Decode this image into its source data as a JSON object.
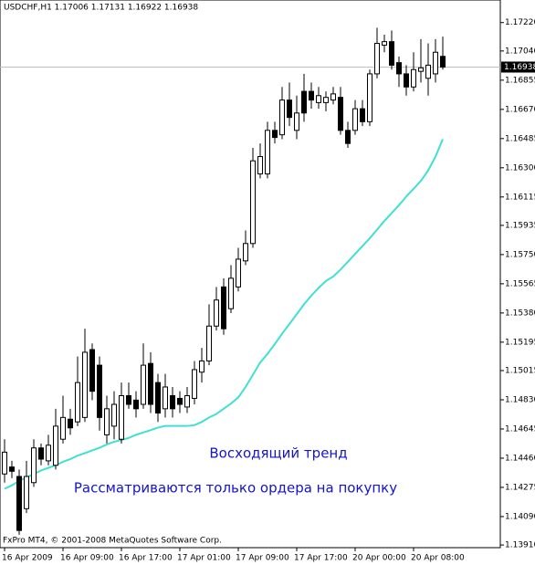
{
  "chart_data": {
    "type": "candlestick",
    "title": "USDCHF,H1  1.17006 1.17131 1.16922 1.16938",
    "footer": "FxPro MT4, © 2001-2008 MetaQuotes Software Corp.",
    "annotations": [
      "Восходящий тренд",
      "Рассматриваются только ордера на покупку"
    ],
    "categories": [
      "16 Apr 2009",
      null,
      null,
      null,
      null,
      null,
      null,
      null,
      "16 Apr 09:00",
      null,
      null,
      null,
      null,
      null,
      null,
      null,
      "16 Apr 17:00",
      null,
      null,
      null,
      null,
      null,
      null,
      null,
      "17 Apr 01:00",
      null,
      null,
      null,
      null,
      null,
      null,
      null,
      "17 Apr 09:00",
      null,
      null,
      null,
      null,
      null,
      null,
      null,
      "17 Apr 17:00",
      null,
      null,
      null,
      null,
      null,
      null,
      null,
      "20 Apr 00:00",
      null,
      null,
      null,
      null,
      null,
      null,
      null,
      "20 Apr 08:00",
      null,
      null,
      null,
      null
    ],
    "open": [
      1.1436,
      1.14404,
      1.14344,
      1.1414,
      1.14305,
      1.14525,
      1.14443,
      1.14415,
      1.1458,
      1.14707,
      1.1469,
      1.14718,
      1.15148,
      1.15049,
      1.14608,
      1.14663,
      1.1458,
      1.14856,
      1.14828,
      1.14801,
      1.1506,
      1.14939,
      1.14773,
      1.14856,
      1.14839,
      1.14784,
      1.14839,
      1.15005,
      1.15076,
      1.15297,
      1.15545,
      1.15407,
      1.15545,
      1.1571,
      1.1582,
      1.16261,
      1.16261,
      1.16537,
      1.16509,
      1.16729,
      1.16537,
      1.16784,
      1.16784,
      1.16713,
      1.16713,
      1.16729,
      1.16746,
      1.16537,
      1.16537,
      1.16674,
      1.16592,
      1.16895,
      1.17077,
      1.17099,
      1.16966,
      1.16895,
      1.16812,
      1.16911,
      1.16867,
      1.16895,
      1.17006
    ],
    "high": [
      1.1458,
      1.14443,
      1.14388,
      1.14443,
      1.1458,
      1.14553,
      1.14608,
      1.14773,
      1.14856,
      1.14773,
      1.15104,
      1.1528,
      1.15187,
      1.15104,
      1.14856,
      1.14884,
      1.14939,
      1.14939,
      1.14884,
      1.15187,
      1.15131,
      1.14994,
      1.14994,
      1.14911,
      1.14884,
      1.14911,
      1.15076,
      1.15159,
      1.15435,
      1.15545,
      1.156,
      1.15683,
      1.15793,
      1.15903,
      1.16426,
      1.16454,
      1.16592,
      1.16592,
      1.16812,
      1.1684,
      1.16757,
      1.16895,
      1.1684,
      1.16812,
      1.16784,
      1.16812,
      1.16812,
      1.16592,
      1.16729,
      1.16729,
      1.16922,
      1.17187,
      1.17143,
      1.1717,
      1.17005,
      1.1695,
      1.17032,
      1.17115,
      1.17088,
      1.17115,
      1.17131
    ],
    "low": [
      1.14305,
      1.14333,
      1.13975,
      1.14112,
      1.14278,
      1.14415,
      1.14415,
      1.14388,
      1.14553,
      1.14608,
      1.14663,
      1.1469,
      1.14828,
      1.14635,
      1.14553,
      1.1458,
      1.14553,
      1.14773,
      1.14718,
      1.14773,
      1.14746,
      1.1469,
      1.14718,
      1.14718,
      1.14746,
      1.14746,
      1.14801,
      1.14939,
      1.15049,
      1.15269,
      1.15242,
      1.15379,
      1.15517,
      1.15683,
      1.15793,
      1.16233,
      1.16233,
      1.16454,
      1.16481,
      1.16564,
      1.16481,
      1.16592,
      1.16674,
      1.16674,
      1.16658,
      1.16702,
      1.16509,
      1.16426,
      1.16509,
      1.16564,
      1.16564,
      1.16867,
      1.17032,
      1.16922,
      1.16812,
      1.16757,
      1.16784,
      1.1684,
      1.16757,
      1.1684,
      1.16922
    ],
    "close": [
      1.14498,
      1.14377,
      1.14002,
      1.14344,
      1.14525,
      1.14454,
      1.14542,
      1.14663,
      1.14718,
      1.14652,
      1.14939,
      1.15131,
      1.14884,
      1.14718,
      1.14773,
      1.14801,
      1.14856,
      1.14801,
      1.14773,
      1.15049,
      1.14801,
      1.14746,
      1.14911,
      1.14773,
      1.14801,
      1.14856,
      1.15021,
      1.15076,
      1.15297,
      1.15462,
      1.1528,
      1.156,
      1.15721,
      1.1582,
      1.16344,
      1.16371,
      1.16537,
      1.16492,
      1.16729,
      1.16619,
      1.16647,
      1.16647,
      1.16729,
      1.16757,
      1.16746,
      1.16768,
      1.16537,
      1.16454,
      1.16674,
      1.16592,
      1.16895,
      1.17088,
      1.17099,
      1.1695,
      1.16895,
      1.16812,
      1.16922,
      1.16933,
      1.1695,
      1.17032,
      1.16938
    ],
    "line_values": [
      1.14266,
      1.14288,
      1.14316,
      1.14338,
      1.1436,
      1.14382,
      1.14399,
      1.14415,
      1.14437,
      1.14454,
      1.14476,
      1.14492,
      1.14509,
      1.14526,
      1.14547,
      1.14564,
      1.14575,
      1.14588,
      1.14608,
      1.14623,
      1.14638,
      1.14654,
      1.14664,
      1.14664,
      1.14664,
      1.14664,
      1.14669,
      1.1469,
      1.14718,
      1.1474,
      1.14773,
      1.14806,
      1.14845,
      1.14911,
      1.14988,
      1.15066,
      1.15121,
      1.15183,
      1.15249,
      1.1531,
      1.15372,
      1.15435,
      1.1549,
      1.15539,
      1.15583,
      1.15611,
      1.15655,
      1.15704,
      1.15754,
      1.15804,
      1.15853,
      1.15908,
      1.15963,
      1.16013,
      1.16063,
      1.16118,
      1.16167,
      1.16217,
      1.16283,
      1.16371,
      1.16481
    ],
    "line_color": "#40e0d0",
    "current_price": 1.16938,
    "ylim": [
      1.13893,
      1.17363
    ],
    "yticks": [
      {
        "value": 1.1722,
        "label": "1.17220"
      },
      {
        "value": 1.1704,
        "label": "1.17040"
      },
      1.16855,
      {
        "value": 1.1667,
        "label": "1.16670"
      },
      1.16485,
      {
        "value": 1.163,
        "label": "1.16300"
      },
      1.16115,
      1.15935,
      {
        "value": 1.1575,
        "label": "1.15750"
      },
      1.15565,
      {
        "value": 1.1538,
        "label": "1.15380"
      },
      1.15195,
      1.15015,
      {
        "value": 1.1483,
        "label": "1.14830"
      },
      1.14645,
      {
        "value": 1.1446,
        "label": "1.14460"
      },
      1.14275,
      {
        "value": 1.1409,
        "label": "1.14090"
      },
      {
        "value": 1.1391,
        "label": "1.13910"
      }
    ]
  }
}
